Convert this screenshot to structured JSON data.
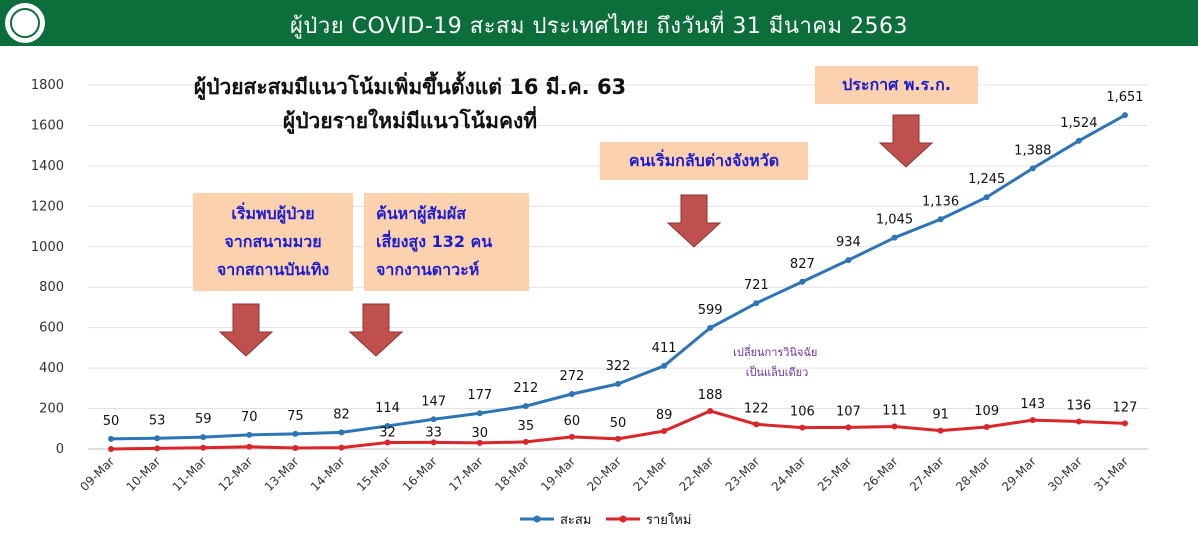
{
  "header": {
    "title": "ผู้ป่วย COVID-19 สะสม  ประเทศไทย ถึงวันที่ 31 มีนาคม 2563"
  },
  "headline": {
    "line1": "ผู้ป่วยสะสมมีแนวโน้มเพิ่มขึ้นตั้งแต่ 16 มี.ค. 63",
    "line2": "ผู้ป่วยรายใหม่มีแนวโน้มคงที่"
  },
  "notes": {
    "boxing": [
      "เริ่มพบผู้ป่วย",
      "จากสนามมวย",
      "จากสถานบันเทิง"
    ],
    "contacts": [
      "ค้นหาผู้สัมผัส",
      "เสี่ยงสูง 132 คน",
      "จากงานดาวะห์"
    ],
    "travel": "คนเริ่มกลับต่างจังหวัด",
    "decree": "ประกาศ พ.ร.ก.",
    "lab": [
      "เปลี่ยนการวินิจฉัย",
      "เป็นแล็บเดียว"
    ]
  },
  "colors": {
    "cumulative": "#2e75b6",
    "new_cases": "#d9262b",
    "arrow": "#c0504d",
    "header": "#0b6e3b",
    "note_bg": "#fbd1ae",
    "note_text": "#1d1dcf"
  },
  "chart_data": {
    "type": "line",
    "categories": [
      "09-Mar",
      "10-Mar",
      "11-Mar",
      "12-Mar",
      "13-Mar",
      "14-Mar",
      "15-Mar",
      "16-Mar",
      "17-Mar",
      "18-Mar",
      "19-Mar",
      "20-Mar",
      "21-Mar",
      "22-Mar",
      "23-Mar",
      "24-Mar",
      "25-Mar",
      "26-Mar",
      "27-Mar",
      "28-Mar",
      "29-Mar",
      "30-Mar",
      "31-Mar"
    ],
    "series": [
      {
        "name": "สะสม",
        "values": [
          50,
          53,
          59,
          70,
          75,
          82,
          114,
          147,
          177,
          212,
          272,
          322,
          411,
          599,
          721,
          827,
          934,
          1045,
          1136,
          1245,
          1388,
          1524,
          1651
        ],
        "labels": [
          "50",
          "53",
          "59",
          "70",
          "75",
          "82",
          "114",
          "147",
          "177",
          "212",
          "272",
          "322",
          "411",
          "599",
          "721",
          "827",
          "934",
          "1,045",
          "1,136",
          "1,245",
          "1,388",
          "1,524",
          "1,651"
        ]
      },
      {
        "name": "รายใหม่",
        "values": [
          0,
          3,
          6,
          11,
          5,
          7,
          32,
          33,
          30,
          35,
          60,
          50,
          89,
          188,
          122,
          106,
          107,
          111,
          91,
          109,
          143,
          136,
          127
        ],
        "labels": [
          "",
          "",
          "",
          "",
          "",
          "",
          "32",
          "33",
          "30",
          "35",
          "60",
          "50",
          "89",
          "188",
          "122",
          "106",
          "107",
          "111",
          "91",
          "109",
          "143",
          "136",
          "127"
        ]
      }
    ],
    "ylim": [
      0,
      1800
    ],
    "yticks": [
      "0",
      "200",
      "400",
      "600",
      "800",
      "1000",
      "1200",
      "1400",
      "1600",
      "1800"
    ],
    "grid": true,
    "legend": "bottom"
  }
}
